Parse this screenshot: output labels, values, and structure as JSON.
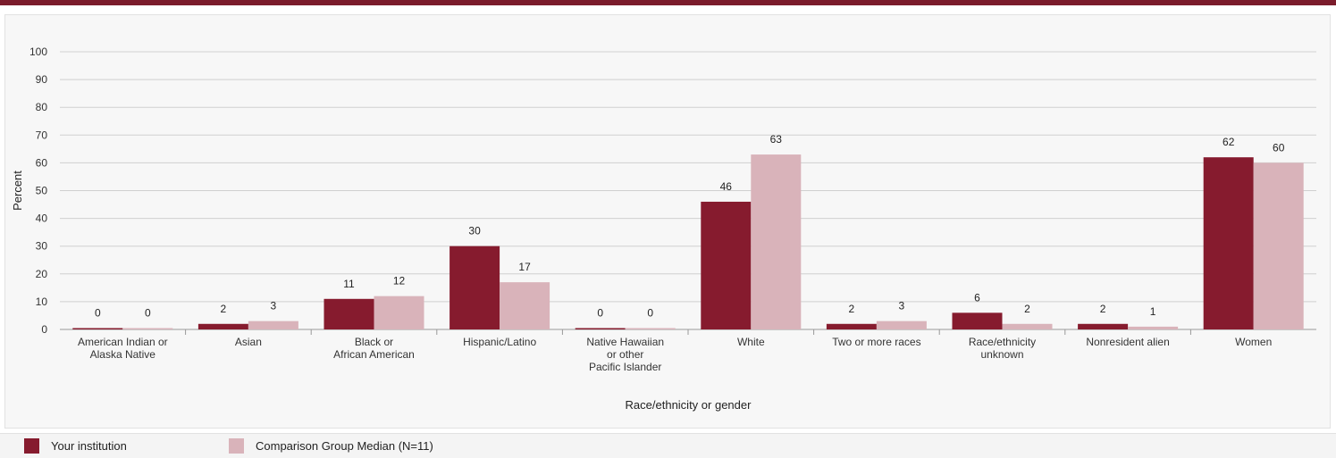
{
  "colors": {
    "top_rule": "#7b1c2c",
    "your_institution": "#861b2e",
    "comparison_group": "#d9b3ba",
    "gridline": "#d0d0d0",
    "axis_text": "#333333"
  },
  "chart_data": {
    "type": "bar",
    "title": "",
    "xlabel": "Race/ethnicity or gender",
    "ylabel": "Percent",
    "ylim": [
      0,
      100
    ],
    "yticks": [
      0,
      10,
      20,
      30,
      40,
      50,
      60,
      70,
      80,
      90,
      100
    ],
    "grid": true,
    "legend_position": "bottom-left",
    "categories": [
      "American Indian or\nAlaska Native",
      "Asian",
      "Black or\nAfrican American",
      "Hispanic/Latino",
      "Native Hawaiian\nor other\nPacific Islander",
      "White",
      "Two or more races",
      "Race/ethnicity\nunknown",
      "Nonresident alien",
      "Women"
    ],
    "series": [
      {
        "name": "Your institution",
        "values": [
          0,
          2,
          11,
          30,
          0,
          46,
          2,
          6,
          2,
          62
        ]
      },
      {
        "name": "Comparison Group Median (N=11)",
        "values": [
          0,
          3,
          12,
          17,
          0,
          63,
          3,
          2,
          1,
          60
        ]
      }
    ]
  },
  "legend": {
    "item1": "Your institution",
    "item2": "Comparison Group Median (N=11)"
  }
}
